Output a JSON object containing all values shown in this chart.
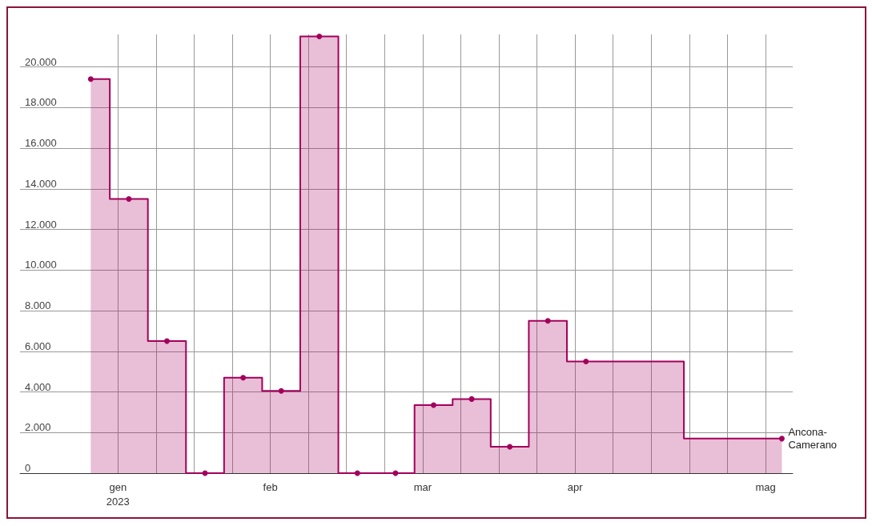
{
  "chart_data": {
    "type": "step",
    "x": [
      "2023-01-02",
      "2023-01-09",
      "2023-01-16",
      "2023-01-23",
      "2023-01-30",
      "2023-02-06",
      "2023-02-13",
      "2023-02-20",
      "2023-02-27",
      "2023-03-06",
      "2023-03-13",
      "2023-03-20",
      "2023-03-27",
      "2023-04-03",
      "2023-05-09"
    ],
    "series": [
      {
        "name": "Ancona-\nCamerano",
        "color": "#a3005c",
        "values": [
          19400,
          13500,
          6500,
          0,
          4700,
          4050,
          21500,
          0,
          0,
          3350,
          3650,
          1300,
          7500,
          5500,
          1700
        ]
      }
    ],
    "xlim": [
      "2022-12-20",
      "2023-05-11"
    ],
    "xticks": [
      {
        "value": "2023-01-07",
        "label": "gen\n2023"
      },
      {
        "value": "2023-01-14",
        "label": null
      },
      {
        "value": "2023-01-21",
        "label": null
      },
      {
        "value": "2023-01-28",
        "label": null
      },
      {
        "value": "2023-02-04",
        "label": "feb"
      },
      {
        "value": "2023-02-11",
        "label": null
      },
      {
        "value": "2023-02-18",
        "label": null
      },
      {
        "value": "2023-02-25",
        "label": null
      },
      {
        "value": "2023-03-04",
        "label": "mar"
      },
      {
        "value": "2023-03-11",
        "label": null
      },
      {
        "value": "2023-03-18",
        "label": null
      },
      {
        "value": "2023-03-25",
        "label": null
      },
      {
        "value": "2023-04-01",
        "label": "apr"
      },
      {
        "value": "2023-04-08",
        "label": null
      },
      {
        "value": "2023-04-15",
        "label": null
      },
      {
        "value": "2023-04-22",
        "label": null
      },
      {
        "value": "2023-04-29",
        "label": null
      },
      {
        "value": "2023-05-06",
        "label": "mag"
      }
    ],
    "ylim": [
      0,
      21600
    ],
    "yticks": [
      0,
      {
        "value": 2000,
        "label": "2.000"
      },
      {
        "value": 4000,
        "label": "4.000"
      },
      {
        "value": 6000,
        "label": "6.000"
      },
      {
        "value": 8000,
        "label": "8.000"
      },
      {
        "value": 10000,
        "label": "10.000"
      },
      {
        "value": 12000,
        "label": "12.000"
      },
      {
        "value": 14000,
        "label": "14.000"
      },
      {
        "value": 16000,
        "label": "16.000"
      },
      {
        "value": 18000,
        "label": "18.000"
      },
      {
        "value": 20000,
        "label": "20.000"
      }
    ],
    "grid": true,
    "marker": "circle",
    "line_style": "solid"
  }
}
